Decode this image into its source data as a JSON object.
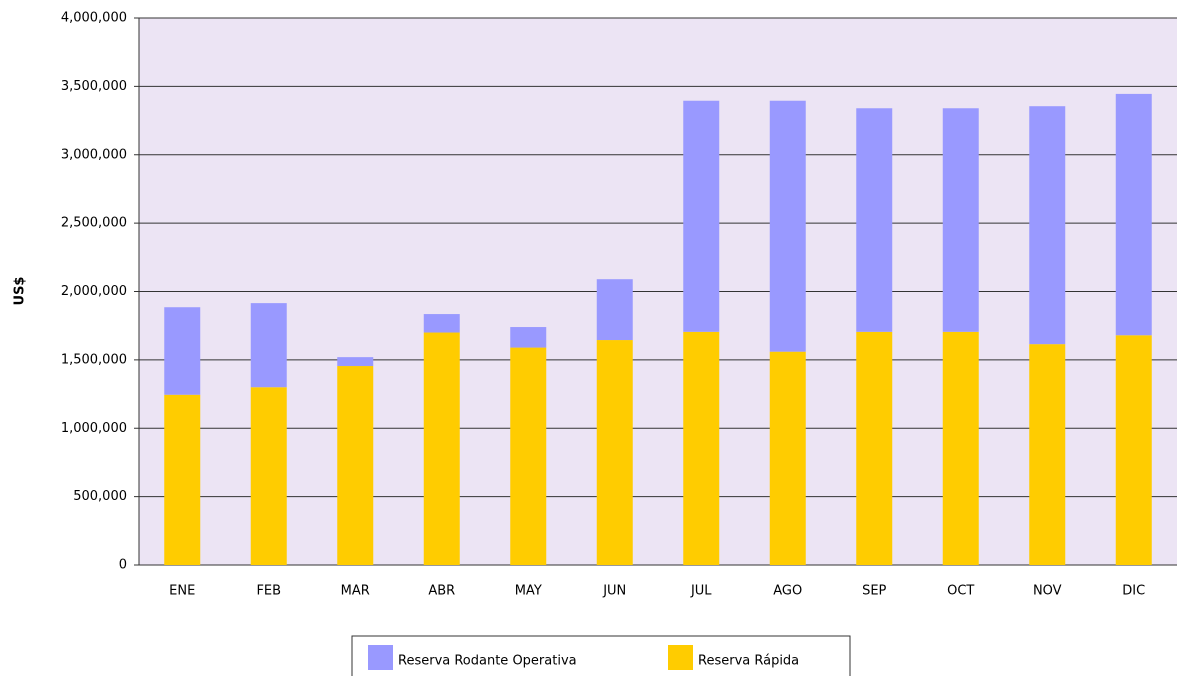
{
  "chart_data": {
    "type": "stacked-bar",
    "y_label": "US$",
    "categories": [
      "ENE",
      "FEB",
      "MAR",
      "ABR",
      "MAY",
      "JUN",
      "JUL",
      "AGO",
      "SEP",
      "OCT",
      "NOV",
      "DIC"
    ],
    "series": [
      {
        "name": "Reserva Rodante Operativa",
        "color": "#9999ff",
        "values": [
          640000,
          615000,
          65000,
          135000,
          150000,
          445000,
          1690000,
          1835000,
          1635000,
          1635000,
          1740000,
          1765000
        ]
      },
      {
        "name": "Reserva Rápida",
        "color": "#ffcc00",
        "values": [
          1245000,
          1300000,
          1455000,
          1700000,
          1590000,
          1645000,
          1705000,
          1560000,
          1705000,
          1705000,
          1615000,
          1680000
        ]
      }
    ],
    "ylim": [
      0,
      4000000
    ],
    "yticks": [
      0,
      {
        "value": 500000,
        "label": "500,000"
      },
      {
        "value": 1000000,
        "label": "1,000,000"
      },
      {
        "value": 1500000,
        "label": "1,500,000"
      },
      {
        "value": 2000000,
        "label": "2,000,000"
      },
      {
        "value": 2500000,
        "label": "2,500,000"
      },
      {
        "value": 3000000,
        "label": "3,000,000"
      },
      {
        "value": 3500000,
        "label": "3,500,000"
      },
      {
        "value": 4000000,
        "label": "4,000,000"
      }
    ],
    "grid": true,
    "legend": "bottom"
  }
}
